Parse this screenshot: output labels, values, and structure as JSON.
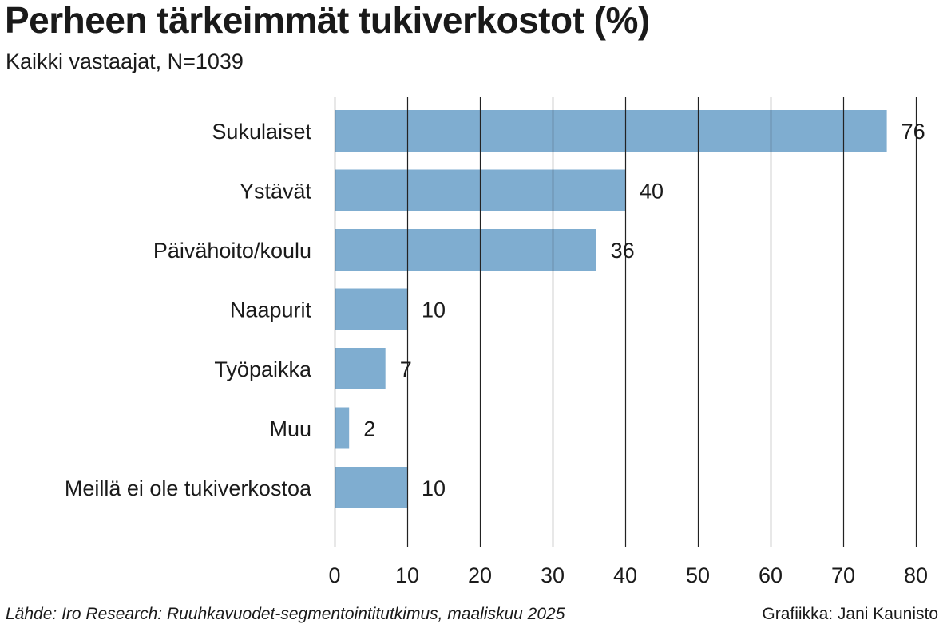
{
  "title": "Perheen tärkeimmät tukiverkostot (%)",
  "subtitle": "Kaikki vastaajat, N=1039",
  "source": "Lähde: Iro Research: Ruuhkavuodet-segmentointitutkimus, maaliskuu 2025",
  "credit": "Grafiikka: Jani Kaunisto",
  "colors": {
    "bar": "#7fadd0",
    "grid": "#222222",
    "text": "#1a1a1a"
  },
  "chart_data": {
    "type": "bar",
    "orientation": "horizontal",
    "categories": [
      "Sukulaiset",
      "Ystävät",
      "Päivähoito/koulu",
      "Naapurit",
      "Työpaikka",
      "Muu",
      "Meillä ei ole tukiverkostoa"
    ],
    "values": [
      76,
      40,
      36,
      10,
      7,
      2,
      10
    ],
    "xlim": [
      0,
      80
    ],
    "xticks": [
      0,
      10,
      20,
      30,
      40,
      50,
      60,
      70,
      80
    ],
    "grid": true,
    "data_labels": true
  }
}
